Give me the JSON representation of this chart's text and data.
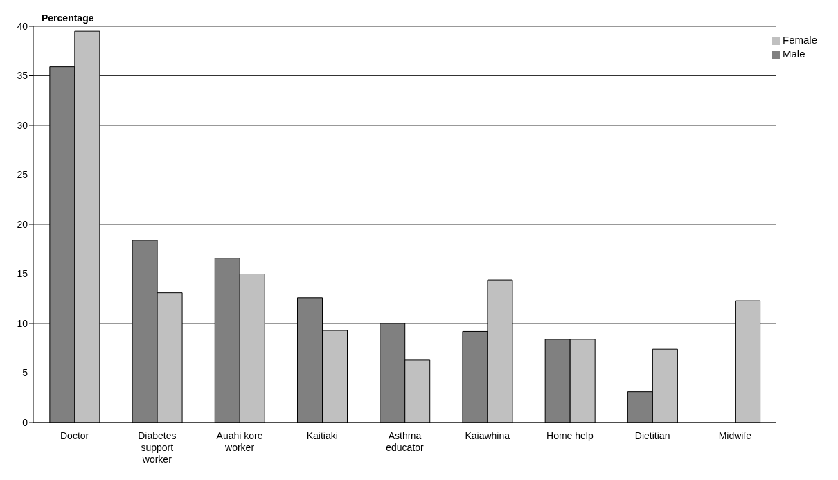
{
  "chart_data": {
    "type": "bar",
    "ylabel": "Percentage",
    "categories": [
      "Doctor",
      "Diabetes support worker",
      "Auahi kore worker",
      "Kaitiaki",
      "Asthma educator",
      "Kaiawhina",
      "Home help",
      "Dietitian",
      "Midwife"
    ],
    "series": [
      {
        "name": "Male",
        "color": "#808080",
        "values": [
          35.9,
          18.4,
          16.6,
          12.6,
          10.0,
          9.2,
          8.4,
          3.1,
          null
        ]
      },
      {
        "name": "Female",
        "color": "#c0c0c0",
        "values": [
          39.5,
          13.1,
          15.0,
          9.3,
          6.3,
          14.4,
          8.4,
          7.4,
          12.3
        ]
      }
    ],
    "ylim": [
      0,
      40
    ],
    "yticks": [
      0,
      5,
      10,
      15,
      20,
      25,
      30,
      35,
      40
    ],
    "grid": "y",
    "legend": "top right"
  }
}
